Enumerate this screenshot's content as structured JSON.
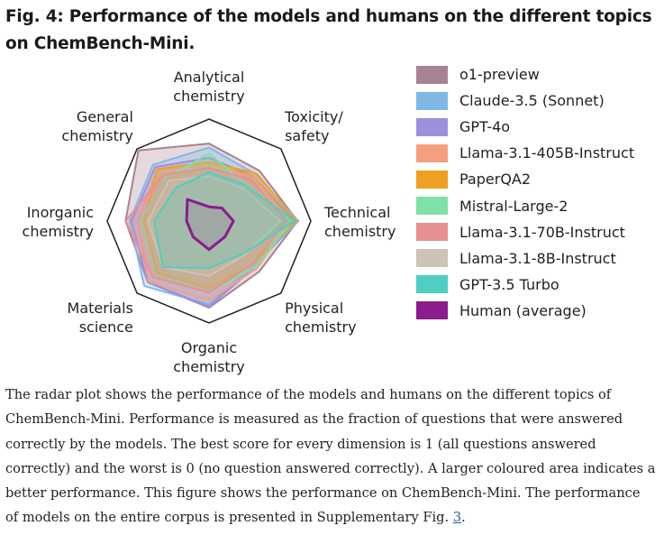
{
  "figure": {
    "title": "Fig. 4: Performance of the models and humans on the different topics on ChemBench-Mini.",
    "caption_text": "The radar plot shows the performance of the models and humans on the different topics of ChemBench-Mini. Performance is measured as the fraction of questions that were answered correctly by the models. The best score for every dimension is 1 (all questions answered correctly) and the worst is 0 (no question answered correctly). A larger coloured area indicates a better performance. This figure shows the performance on ChemBench-Mini. The performance of models on the entire corpus is presented in Supplementary Fig. ",
    "caption_link": "3",
    "caption_end": "."
  },
  "chart_data": {
    "type": "radar",
    "title": "",
    "legend_position": "right",
    "range": [
      0,
      1
    ],
    "grid": false,
    "axes": [
      {
        "name": "Analytical chemistry",
        "lines": [
          "Analytical",
          "chemistry"
        ]
      },
      {
        "name": "Toxicity/safety",
        "lines": [
          "Toxicity/",
          "safety"
        ]
      },
      {
        "name": "Technical chemistry",
        "lines": [
          "Technical",
          "chemistry"
        ]
      },
      {
        "name": "Physical chemistry",
        "lines": [
          "Physical",
          "chemistry"
        ]
      },
      {
        "name": "Organic chemistry",
        "lines": [
          "Organic",
          "chemistry"
        ]
      },
      {
        "name": "Materials science",
        "lines": [
          "Materials",
          "science"
        ]
      },
      {
        "name": "Inorganic chemistry",
        "lines": [
          "Inorganic",
          "chemistry"
        ]
      },
      {
        "name": "General chemistry",
        "lines": [
          "General",
          "chemistry"
        ]
      }
    ],
    "series": [
      {
        "name": "o1-preview",
        "color": "#a88293",
        "values": [
          0.76,
          0.7,
          0.87,
          0.7,
          0.85,
          0.85,
          0.82,
          0.98
        ]
      },
      {
        "name": "Claude-3.5 (Sonnet)",
        "color": "#7fb8e6",
        "values": [
          0.72,
          0.65,
          0.88,
          0.62,
          0.82,
          0.9,
          0.78,
          0.78
        ]
      },
      {
        "name": "GPT-4o",
        "color": "#9e8fdc",
        "values": [
          0.62,
          0.62,
          0.84,
          0.64,
          0.84,
          0.85,
          0.76,
          0.75
        ]
      },
      {
        "name": "Llama-3.1-405B-Instruct",
        "color": "#f4a07f",
        "values": [
          0.56,
          0.62,
          0.8,
          0.66,
          0.78,
          0.84,
          0.7,
          0.72
        ]
      },
      {
        "name": "PaperQA2",
        "color": "#f0a020",
        "values": [
          0.58,
          0.66,
          0.86,
          0.6,
          0.66,
          0.72,
          0.64,
          0.72
        ]
      },
      {
        "name": "Mistral-Large-2",
        "color": "#7fe0a8",
        "values": [
          0.66,
          0.52,
          0.82,
          0.64,
          0.7,
          0.74,
          0.68,
          0.6
        ]
      },
      {
        "name": "Llama-3.1-70B-Instruct",
        "color": "#e89090",
        "values": [
          0.52,
          0.58,
          0.76,
          0.6,
          0.7,
          0.78,
          0.82,
          0.64
        ]
      },
      {
        "name": "Llama-3.1-8B-Instruct",
        "color": "#ccc2b6",
        "values": [
          0.44,
          0.46,
          0.7,
          0.48,
          0.54,
          0.64,
          0.6,
          0.56
        ]
      },
      {
        "name": "GPT-3.5 Turbo",
        "color": "#4dcfc3",
        "values": [
          0.48,
          0.5,
          0.84,
          0.46,
          0.46,
          0.64,
          0.54,
          0.46
        ]
      },
      {
        "name": "Human (average)",
        "color": "#8c1b8c",
        "values": [
          0.14,
          0.18,
          0.24,
          0.22,
          0.28,
          0.22,
          0.22,
          0.3
        ]
      }
    ]
  }
}
